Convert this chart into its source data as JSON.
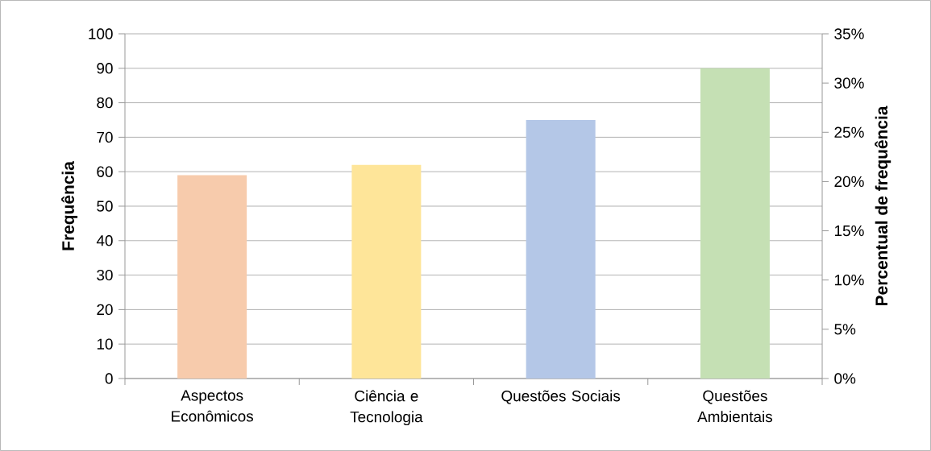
{
  "chart_data": {
    "type": "bar",
    "categories": [
      "Aspectos Econômicos",
      "Ciência e Tecnologia",
      "Questões Sociais",
      "Questões Ambientais"
    ],
    "values": [
      59,
      62,
      75,
      90
    ],
    "colors": [
      "#f7cbac",
      "#fee599",
      "#b4c7e7",
      "#c5e0b4"
    ],
    "ylabel": "Frequência",
    "y2label": "Percentual de frequência",
    "ylim": [
      0,
      100
    ],
    "yticks": [
      0,
      10,
      20,
      30,
      40,
      50,
      60,
      70,
      80,
      90,
      100
    ],
    "y2lim": [
      0,
      35
    ],
    "y2ticks": [
      {
        "value": 0,
        "label": "0%"
      },
      {
        "value": 5,
        "label": "5%"
      },
      {
        "value": 10,
        "label": "10%"
      },
      {
        "value": 15,
        "label": "15%"
      },
      {
        "value": 20,
        "label": "20%"
      },
      {
        "value": 25,
        "label": "25%"
      },
      {
        "value": 30,
        "label": "30%"
      },
      {
        "value": 35,
        "label": "35%"
      }
    ],
    "grid": "y"
  }
}
